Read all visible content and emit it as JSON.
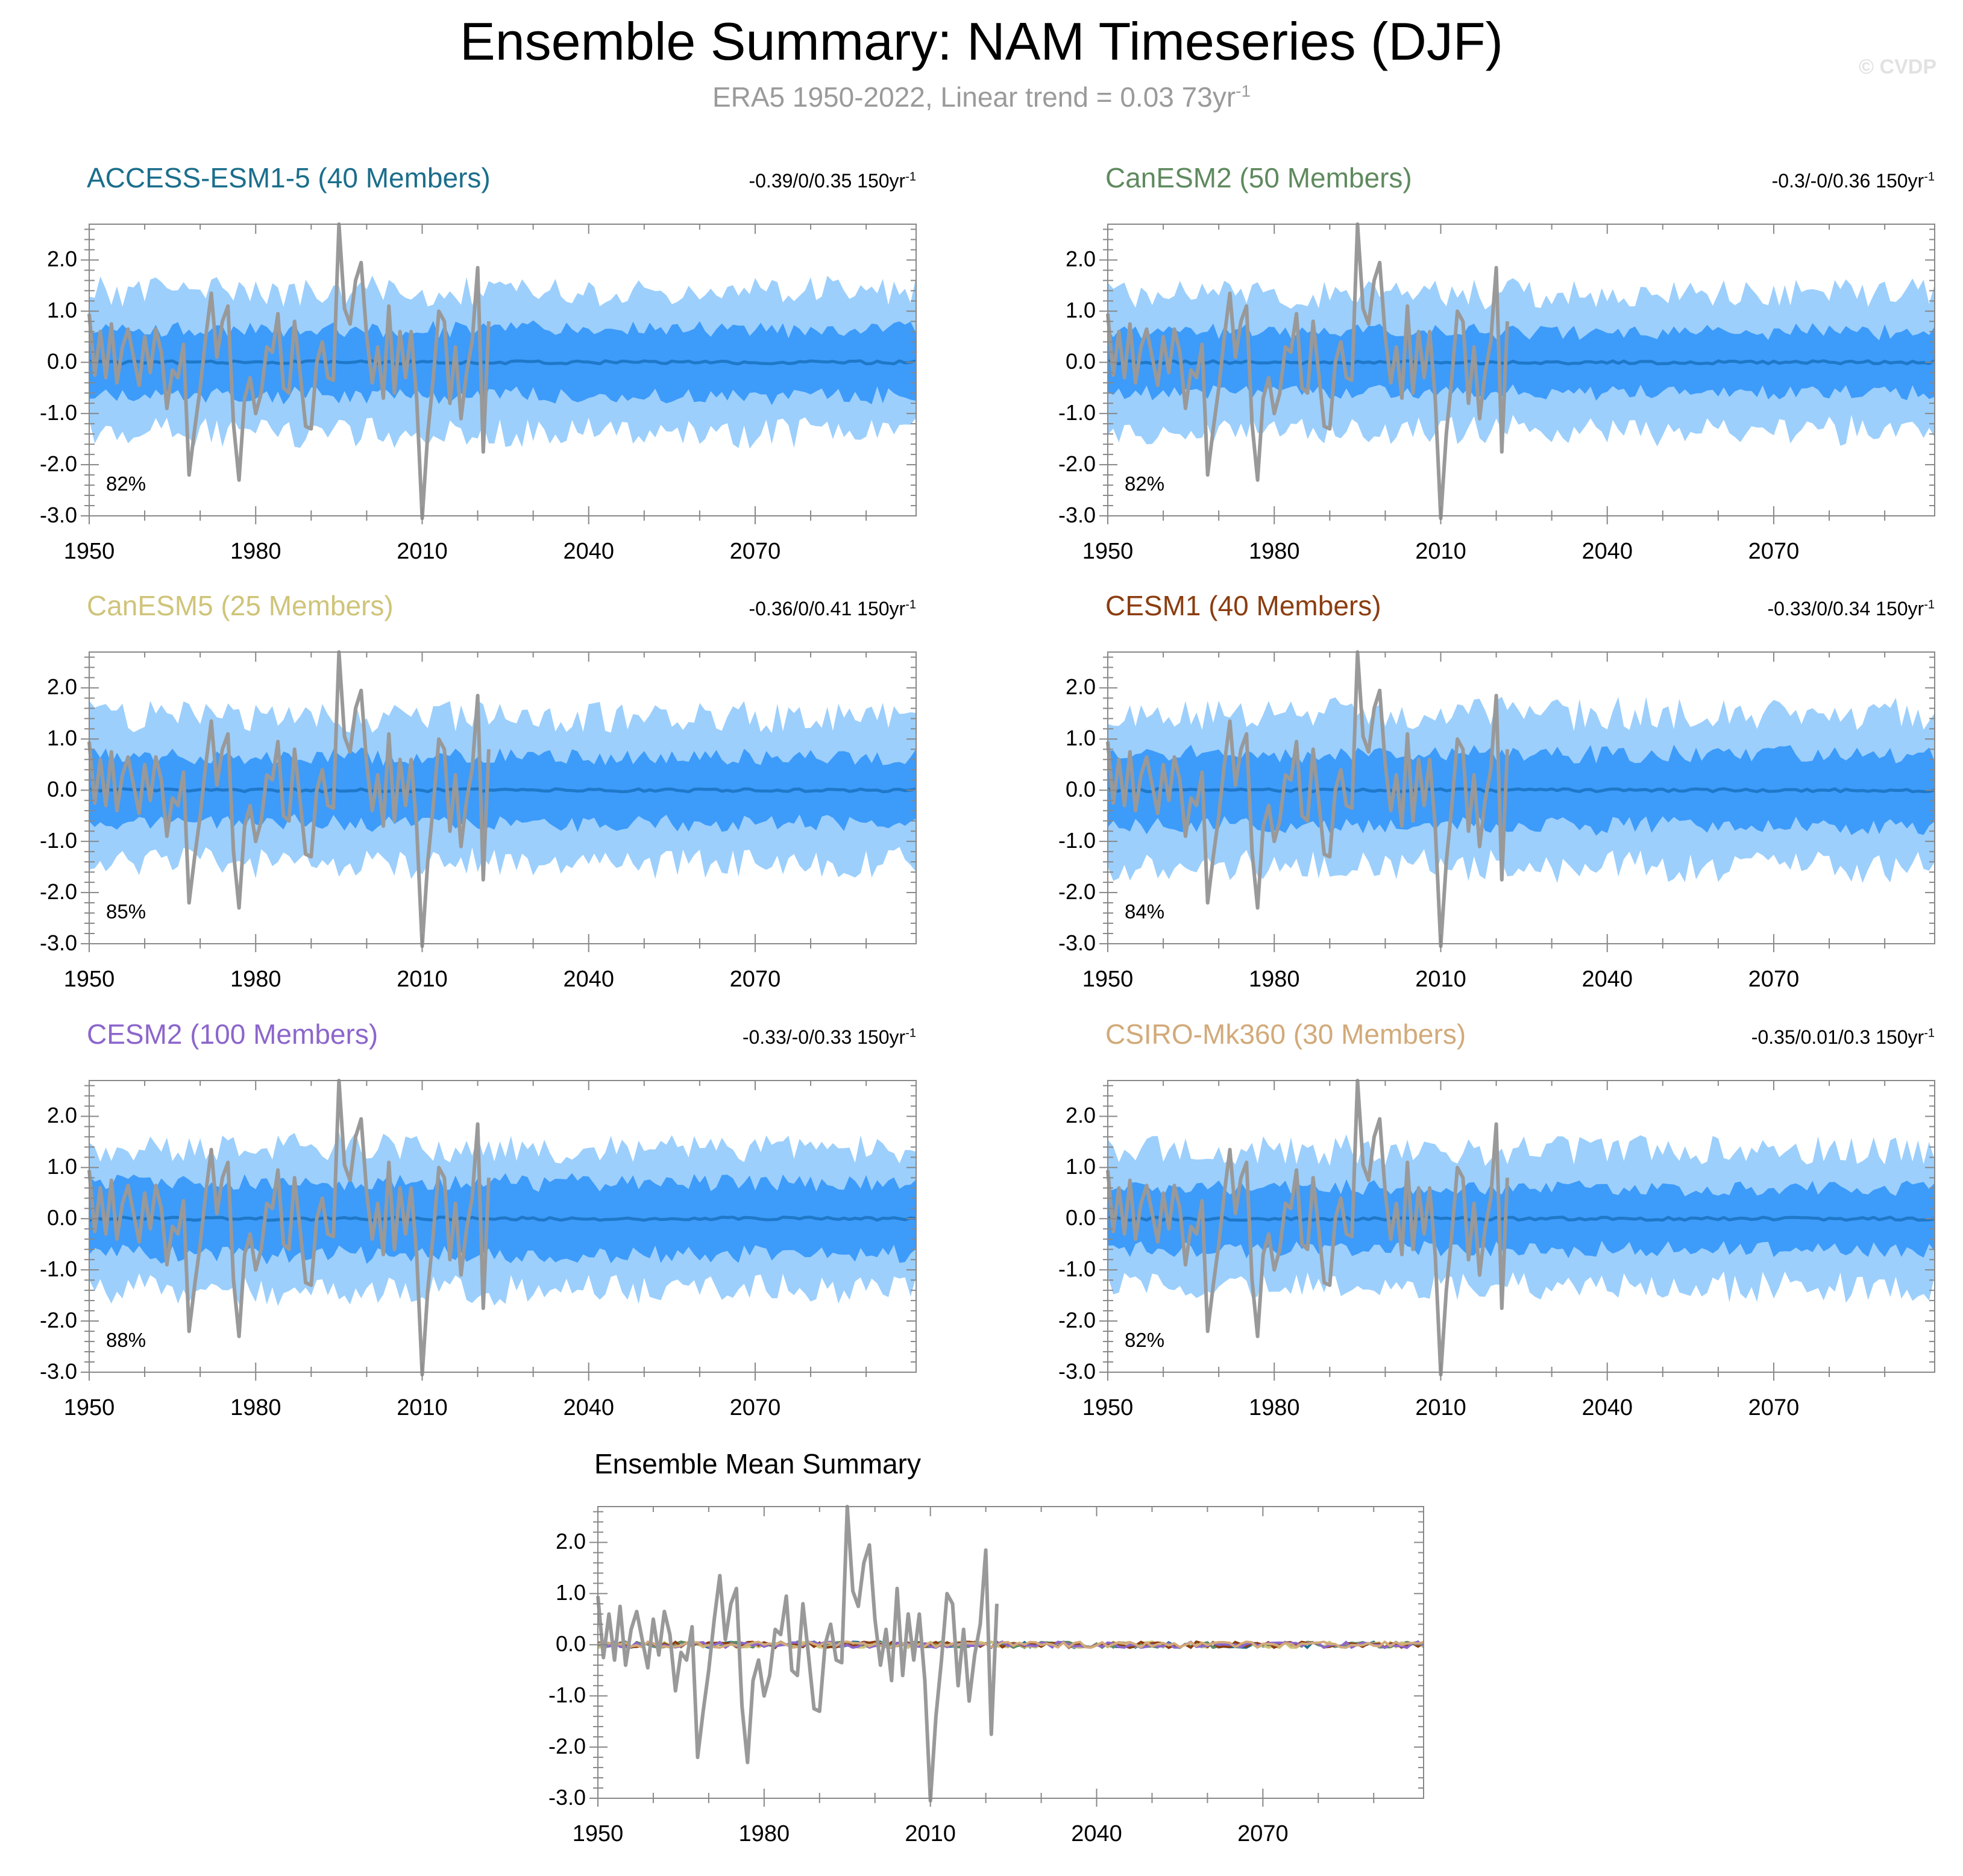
{
  "title": "Ensemble Summary: NAM Timeseries (DJF)",
  "subtitle": {
    "text": "ERA5 1950-2022, Linear trend = 0.03 73yr",
    "sup": "-1"
  },
  "copyright": "© CVDP",
  "colors": {
    "band_outer": "#9ccffc",
    "band_inner": "#3d9bfa",
    "ens_mean_line": "#1f78c8",
    "obs_line": "#999999",
    "frame": "#888888"
  },
  "panels": [
    {
      "title": "ACCESS-ESM1-5 (40 Members)",
      "title_color": "#1b6e8c",
      "stat": "-0.39/0/0.35 150yr",
      "stat_sup": "-1",
      "pct": "82%",
      "seed": 11
    },
    {
      "title": "CanESM2 (50 Members)",
      "title_color": "#5f8a5f",
      "stat": "-0.3/-0/0.36 150yr",
      "stat_sup": "-1",
      "pct": "82%",
      "seed": 23
    },
    {
      "title": "CanESM5 (25 Members)",
      "title_color": "#cfc47a",
      "stat": "-0.36/0/0.41 150yr",
      "stat_sup": "-1",
      "pct": "85%",
      "seed": 37
    },
    {
      "title": "CESM1 (40 Members)",
      "title_color": "#8b3d10",
      "stat": "-0.33/0/0.34 150yr",
      "stat_sup": "-1",
      "pct": "84%",
      "seed": 41
    },
    {
      "title": "CESM2 (100 Members)",
      "title_color": "#8c66cc",
      "stat": "-0.33/-0/0.33 150yr",
      "stat_sup": "-1",
      "pct": "88%",
      "seed": 53
    },
    {
      "title": "CSIRO-Mk360 (30 Members)",
      "title_color": "#d2aa7a",
      "stat": "-0.35/0.01/0.3 150yr",
      "stat_sup": "-1",
      "pct": "82%",
      "seed": 67
    }
  ],
  "mean_panel": {
    "title": "Ensemble Mean Summary",
    "line_colors": [
      "#1b6e8c",
      "#5f8a5f",
      "#cfc47a",
      "#8b3d10",
      "#8c66cc",
      "#d2aa7a"
    ]
  },
  "chart_data": {
    "type": "line",
    "title": "Ensemble Summary: NAM Timeseries (DJF)",
    "xlabel": "",
    "ylabel": "",
    "xlim": [
      1950,
      2099
    ],
    "ylim": [
      -3.0,
      2.7
    ],
    "x_ticks": [
      1950,
      1980,
      2010,
      2040,
      2070
    ],
    "y_ticks": [
      2.0,
      1.0,
      0.0,
      -1.0,
      -2.0,
      -3.0
    ],
    "y_tick_labels": [
      "2.0",
      "1.0",
      "0.0",
      "-1.0",
      "-2.0",
      "-3.0"
    ],
    "x_tick_labels": [
      "1950",
      "1980",
      "2010",
      "2040",
      "2070"
    ],
    "observations": {
      "name": "ERA5",
      "years": [
        1950,
        1951,
        1952,
        1953,
        1954,
        1955,
        1956,
        1957,
        1958,
        1959,
        1960,
        1961,
        1962,
        1963,
        1964,
        1965,
        1966,
        1967,
        1968,
        1969,
        1970,
        1971,
        1972,
        1973,
        1974,
        1975,
        1976,
        1977,
        1978,
        1979,
        1980,
        1981,
        1982,
        1983,
        1984,
        1985,
        1986,
        1987,
        1988,
        1989,
        1990,
        1991,
        1992,
        1993,
        1994,
        1995,
        1996,
        1997,
        1998,
        1999,
        2000,
        2001,
        2002,
        2003,
        2004,
        2005,
        2006,
        2007,
        2008,
        2009,
        2010,
        2011,
        2012,
        2013,
        2014,
        2015,
        2016,
        2017,
        2018,
        2019,
        2020,
        2021,
        2022
      ],
      "values": [
        0.95,
        -0.25,
        0.6,
        -0.3,
        0.75,
        -0.4,
        0.3,
        0.65,
        0.1,
        -0.45,
        0.5,
        -0.2,
        0.65,
        0.2,
        -0.9,
        -0.15,
        -0.3,
        0.35,
        -2.2,
        -1.3,
        -0.5,
        0.5,
        1.35,
        0.1,
        0.8,
        1.1,
        -1.2,
        -2.3,
        -0.7,
        -0.3,
        -1.0,
        -0.6,
        0.3,
        0.2,
        0.95,
        -0.5,
        -0.6,
        0.8,
        -0.2,
        -1.25,
        -1.3,
        0.0,
        0.4,
        -0.3,
        -0.35,
        2.7,
        1.05,
        0.75,
        1.6,
        1.95,
        0.5,
        -0.4,
        0.3,
        -0.7,
        1.1,
        -0.6,
        0.6,
        -0.3,
        0.6,
        -0.7,
        -3.05,
        -1.4,
        -0.3,
        1.0,
        0.8,
        -0.8,
        0.3,
        -1.1,
        -0.2,
        0.4,
        1.85,
        -1.75,
        0.8
      ]
    },
    "series": [
      {
        "name": "ACCESS-ESM1-5 ensemble mean",
        "approx_value": 0.0,
        "inner_band_halfwidth": 0.65,
        "outer_band_halfwidth": 1.35,
        "pct_obs_within_band": "82%"
      },
      {
        "name": "CanESM2 ensemble mean",
        "approx_value": 0.0,
        "inner_band_halfwidth": 0.6,
        "outer_band_halfwidth": 1.3,
        "pct_obs_within_band": "82%"
      },
      {
        "name": "CanESM5 ensemble mean",
        "approx_value": 0.0,
        "inner_band_halfwidth": 0.65,
        "outer_band_halfwidth": 1.4,
        "pct_obs_within_band": "85%"
      },
      {
        "name": "CESM1 ensemble mean",
        "approx_value": 0.0,
        "inner_band_halfwidth": 0.7,
        "outer_band_halfwidth": 1.45,
        "pct_obs_within_band": "84%"
      },
      {
        "name": "CESM2 ensemble mean",
        "approx_value": 0.0,
        "inner_band_halfwidth": 0.7,
        "outer_band_halfwidth": 1.35,
        "pct_obs_within_band": "88%"
      },
      {
        "name": "CSIRO-Mk360 ensemble mean",
        "approx_value": 0.0,
        "inner_band_halfwidth": 0.6,
        "outer_band_halfwidth": 1.3,
        "pct_obs_within_band": "82%"
      }
    ]
  }
}
